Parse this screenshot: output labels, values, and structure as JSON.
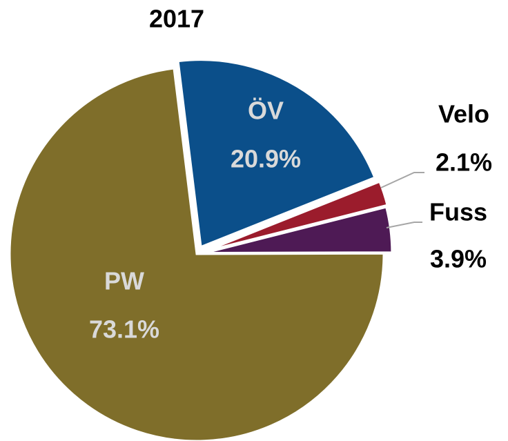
{
  "chart_data": {
    "type": "pie",
    "title": "2017",
    "categories": [
      "ÖV",
      "Velo",
      "Fuss",
      "PW"
    ],
    "values": [
      20.9,
      2.1,
      3.9,
      73.1
    ],
    "value_labels": [
      "20.9%",
      "2.1%",
      "3.9%",
      "73.1%"
    ],
    "colors": [
      "#0b4f8a",
      "#9b1c2c",
      "#4e1a55",
      "#7f6e2a"
    ]
  }
}
